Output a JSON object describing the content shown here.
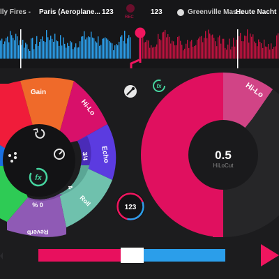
{
  "deck_left": {
    "track_artist": "lly Fires -",
    "track_title": "Paris (Aeroplane...",
    "bpm": "123"
  },
  "record": {
    "label": "REC",
    "color": "#d0104c"
  },
  "deck_right": {
    "track_artist": "Greenville Mas...",
    "track_title": "Heute Nacht",
    "bpm": "123"
  },
  "fx_wheel": {
    "segments": [
      {
        "label": "Gain",
        "color": "#ef6a2a"
      },
      {
        "label": "Hi-Lo",
        "color": "#d8106a"
      },
      {
        "label": "Echo",
        "color": "#5b3be0"
      },
      {
        "label": "Roll",
        "color": "#6fc1ad"
      },
      {
        "label": "Reverb",
        "color": "#8f5ab5"
      }
    ],
    "inner_values": {
      "echo_beat": "3/4",
      "roll_beat": "4",
      "reverb_amount": "% 0"
    },
    "fx_badge": "fx"
  },
  "fx_pad": {
    "selected_label": "Hi-Lo",
    "value": "0.5",
    "param_label": "HiLoCut",
    "level": 0.5,
    "colors": {
      "main": "#e0105f",
      "highlight": "#d14486"
    }
  },
  "settings": {
    "fx_badge": "fx",
    "icon": "wrench-icon"
  },
  "sync": {
    "bpm": "123"
  },
  "crossfader": {
    "position": 0.5,
    "left_color": "#e8105e",
    "right_color": "#2b9eea"
  },
  "colors": {
    "accent_pink": "#f0165f",
    "accent_blue": "#2b9eea",
    "accent_green": "#46d5a0"
  }
}
